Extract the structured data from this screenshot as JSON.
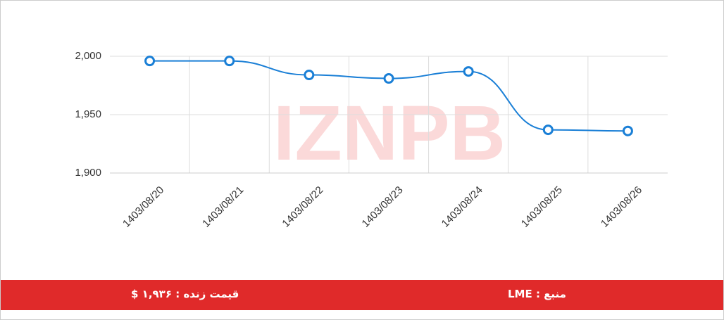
{
  "chart_data": {
    "type": "line",
    "watermark": "IZNPB",
    "categories": [
      "1403/08/20",
      "1403/08/21",
      "1403/08/22",
      "1403/08/23",
      "1403/08/24",
      "1403/08/25",
      "1403/08/26"
    ],
    "series": [
      {
        "color": "#1a7fd6",
        "values": [
          1996,
          1996,
          1984,
          1981,
          1987,
          1937,
          1936
        ]
      }
    ],
    "ylim": [
      1900,
      2000
    ],
    "yticks": [
      {
        "value": 1900,
        "label": "1,900"
      },
      {
        "value": 1950,
        "label": "1,950"
      },
      {
        "value": 2000,
        "label": "2,000"
      }
    ],
    "grid": true,
    "footer": {
      "price": "قیمت زنده : ۱,۹۳۶ $",
      "source": "منبع : LME"
    }
  }
}
